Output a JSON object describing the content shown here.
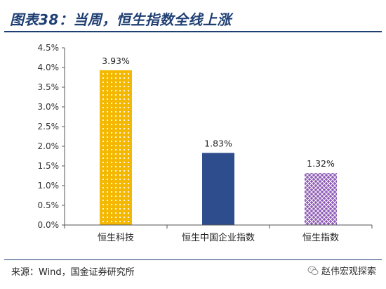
{
  "title": "图表38：当周，恒生指数全线上涨",
  "source": "来源：Wind，国金证券研究所",
  "watermark": {
    "text": "赵伟宏观探索",
    "icon": "wechat-icon"
  },
  "colors": {
    "title": "#1f3f73",
    "rule": "#1f3f73",
    "bar_yellow": "#f5b800",
    "bar_blue": "#2e4d8c",
    "bar_purple": "#8e5bb5",
    "axis": "#555555"
  },
  "chart_data": {
    "type": "bar",
    "categories": [
      "恒生科技",
      "恒生中国企业指数",
      "恒生指数"
    ],
    "values": [
      3.93,
      1.83,
      1.32
    ],
    "value_labels": [
      "3.93%",
      "1.83%",
      "1.32%"
    ],
    "bar_colors": [
      "#f5b800",
      "#2e4d8c",
      "#8e5bb5"
    ],
    "bar_patterns": [
      "dots",
      "solid",
      "lattice"
    ],
    "ylim": [
      0,
      4.5
    ],
    "yticks": [
      0,
      0.5,
      1.0,
      1.5,
      2.0,
      2.5,
      3.0,
      3.5,
      4.0,
      4.5
    ],
    "ytick_labels": [
      "0.0%",
      "0.5%",
      "1.0%",
      "1.5%",
      "2.0%",
      "2.5%",
      "3.0%",
      "3.5%",
      "4.0%",
      "4.5%"
    ],
    "title": "图表38：当周，恒生指数全线上涨",
    "xlabel": "",
    "ylabel": "",
    "grid": false,
    "legend": "none"
  }
}
